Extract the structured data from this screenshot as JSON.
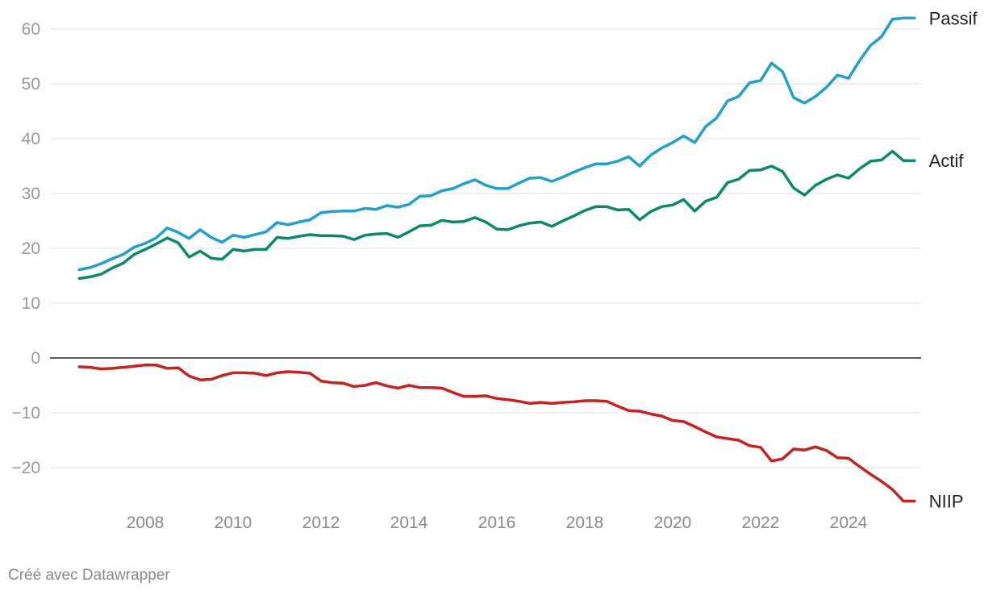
{
  "credit": "Créé avec Datawrapper",
  "chart_data": {
    "type": "line",
    "title": "",
    "xlabel": "",
    "ylabel": "",
    "xlim": [
      2006.3,
      2025.4
    ],
    "ylim": [
      -26,
      62
    ],
    "y_ticks": [
      60,
      50,
      40,
      30,
      20,
      10,
      0,
      -10,
      -20
    ],
    "y_tick_labels": [
      "60",
      "50",
      "40",
      "30",
      "20",
      "10",
      "0",
      "−10",
      "−20"
    ],
    "x_ticks": [
      2008,
      2010,
      2012,
      2014,
      2016,
      2018,
      2020,
      2022,
      2024
    ],
    "x_tick_labels": [
      "2008",
      "2010",
      "2012",
      "2014",
      "2016",
      "2018",
      "2020",
      "2022",
      "2024"
    ],
    "grid": true,
    "legend": "direct labels at line ends",
    "series": [
      {
        "name": "Passif",
        "color": "#1fa0cf",
        "points": [
          [
            2006.5,
            16.1
          ],
          [
            2006.75,
            16.5
          ],
          [
            2007.0,
            17.2
          ],
          [
            2007.25,
            18.1
          ],
          [
            2007.5,
            18.9
          ],
          [
            2007.75,
            20.2
          ],
          [
            2008.0,
            20.9
          ],
          [
            2008.25,
            21.9
          ],
          [
            2008.5,
            23.7
          ],
          [
            2008.75,
            22.9
          ],
          [
            2009.0,
            21.8
          ],
          [
            2009.25,
            23.4
          ],
          [
            2009.5,
            22.0
          ],
          [
            2009.75,
            21.1
          ],
          [
            2010.0,
            22.4
          ],
          [
            2010.25,
            22.0
          ],
          [
            2010.5,
            22.5
          ],
          [
            2010.75,
            23.0
          ],
          [
            2011.0,
            24.7
          ],
          [
            2011.25,
            24.3
          ],
          [
            2011.5,
            24.8
          ],
          [
            2011.75,
            25.2
          ],
          [
            2012.0,
            26.5
          ],
          [
            2012.25,
            26.7
          ],
          [
            2012.5,
            26.8
          ],
          [
            2012.75,
            26.8
          ],
          [
            2013.0,
            27.3
          ],
          [
            2013.25,
            27.1
          ],
          [
            2013.5,
            27.8
          ],
          [
            2013.75,
            27.5
          ],
          [
            2014.0,
            28.0
          ],
          [
            2014.25,
            29.5
          ],
          [
            2014.5,
            29.6
          ],
          [
            2014.75,
            30.5
          ],
          [
            2015.0,
            30.9
          ],
          [
            2015.25,
            31.8
          ],
          [
            2015.5,
            32.5
          ],
          [
            2015.75,
            31.5
          ],
          [
            2016.0,
            30.9
          ],
          [
            2016.25,
            30.9
          ],
          [
            2016.5,
            31.9
          ],
          [
            2016.75,
            32.8
          ],
          [
            2017.0,
            32.9
          ],
          [
            2017.25,
            32.2
          ],
          [
            2017.5,
            33.0
          ],
          [
            2017.75,
            33.9
          ],
          [
            2018.0,
            34.7
          ],
          [
            2018.25,
            35.4
          ],
          [
            2018.5,
            35.4
          ],
          [
            2018.75,
            35.9
          ],
          [
            2019.0,
            36.7
          ],
          [
            2019.25,
            35.0
          ],
          [
            2019.5,
            37.0
          ],
          [
            2019.75,
            38.3
          ],
          [
            2020.0,
            39.3
          ],
          [
            2020.25,
            40.5
          ],
          [
            2020.5,
            39.3
          ],
          [
            2020.75,
            42.2
          ],
          [
            2021.0,
            43.8
          ],
          [
            2021.25,
            46.9
          ],
          [
            2021.5,
            47.7
          ],
          [
            2021.75,
            50.2
          ],
          [
            2022.0,
            50.6
          ],
          [
            2022.25,
            53.8
          ],
          [
            2022.5,
            52.2
          ],
          [
            2022.75,
            47.5
          ],
          [
            2023.0,
            46.5
          ],
          [
            2023.25,
            47.7
          ],
          [
            2023.5,
            49.4
          ],
          [
            2023.75,
            51.6
          ],
          [
            2024.0,
            51.0
          ],
          [
            2024.25,
            54.2
          ],
          [
            2024.5,
            57.0
          ],
          [
            2024.75,
            58.6
          ],
          [
            2025.0,
            61.8
          ],
          [
            2025.25,
            62.0
          ],
          [
            2025.5,
            62.0
          ]
        ]
      },
      {
        "name": "Actif",
        "color": "#0a8a6a",
        "points": [
          [
            2006.5,
            14.5
          ],
          [
            2006.75,
            14.8
          ],
          [
            2007.0,
            15.3
          ],
          [
            2007.25,
            16.4
          ],
          [
            2007.5,
            17.3
          ],
          [
            2007.75,
            18.9
          ],
          [
            2008.0,
            19.8
          ],
          [
            2008.25,
            20.8
          ],
          [
            2008.5,
            21.9
          ],
          [
            2008.75,
            21.0
          ],
          [
            2009.0,
            18.4
          ],
          [
            2009.25,
            19.5
          ],
          [
            2009.5,
            18.2
          ],
          [
            2009.75,
            18.0
          ],
          [
            2010.0,
            19.8
          ],
          [
            2010.25,
            19.5
          ],
          [
            2010.5,
            19.8
          ],
          [
            2010.75,
            19.8
          ],
          [
            2011.0,
            22.0
          ],
          [
            2011.25,
            21.8
          ],
          [
            2011.5,
            22.2
          ],
          [
            2011.75,
            22.5
          ],
          [
            2012.0,
            22.3
          ],
          [
            2012.25,
            22.3
          ],
          [
            2012.5,
            22.2
          ],
          [
            2012.75,
            21.6
          ],
          [
            2013.0,
            22.4
          ],
          [
            2013.25,
            22.6
          ],
          [
            2013.5,
            22.7
          ],
          [
            2013.75,
            22.0
          ],
          [
            2014.0,
            23.0
          ],
          [
            2014.25,
            24.1
          ],
          [
            2014.5,
            24.2
          ],
          [
            2014.75,
            25.1
          ],
          [
            2015.0,
            24.8
          ],
          [
            2015.25,
            24.9
          ],
          [
            2015.5,
            25.6
          ],
          [
            2015.75,
            24.8
          ],
          [
            2016.0,
            23.5
          ],
          [
            2016.25,
            23.4
          ],
          [
            2016.5,
            24.1
          ],
          [
            2016.75,
            24.6
          ],
          [
            2017.0,
            24.8
          ],
          [
            2017.25,
            24.0
          ],
          [
            2017.5,
            25.0
          ],
          [
            2017.75,
            25.9
          ],
          [
            2018.0,
            26.9
          ],
          [
            2018.25,
            27.6
          ],
          [
            2018.5,
            27.6
          ],
          [
            2018.75,
            27.0
          ],
          [
            2019.0,
            27.1
          ],
          [
            2019.25,
            25.2
          ],
          [
            2019.5,
            26.7
          ],
          [
            2019.75,
            27.6
          ],
          [
            2020.0,
            27.9
          ],
          [
            2020.25,
            28.9
          ],
          [
            2020.5,
            26.8
          ],
          [
            2020.75,
            28.6
          ],
          [
            2021.0,
            29.3
          ],
          [
            2021.25,
            32.0
          ],
          [
            2021.5,
            32.6
          ],
          [
            2021.75,
            34.2
          ],
          [
            2022.0,
            34.3
          ],
          [
            2022.25,
            35.0
          ],
          [
            2022.5,
            34.0
          ],
          [
            2022.75,
            31.0
          ],
          [
            2023.0,
            29.7
          ],
          [
            2023.25,
            31.5
          ],
          [
            2023.5,
            32.6
          ],
          [
            2023.75,
            33.4
          ],
          [
            2024.0,
            32.8
          ],
          [
            2024.25,
            34.5
          ],
          [
            2024.5,
            35.9
          ],
          [
            2024.75,
            36.1
          ],
          [
            2025.0,
            37.7
          ],
          [
            2025.25,
            36.0
          ],
          [
            2025.5,
            36.0
          ]
        ]
      },
      {
        "name": "NIIP",
        "color": "#c8211f",
        "points": [
          [
            2006.5,
            -1.6
          ],
          [
            2006.75,
            -1.7
          ],
          [
            2007.0,
            -2.0
          ],
          [
            2007.25,
            -1.9
          ],
          [
            2007.5,
            -1.7
          ],
          [
            2007.75,
            -1.5
          ],
          [
            2008.0,
            -1.3
          ],
          [
            2008.25,
            -1.3
          ],
          [
            2008.5,
            -1.9
          ],
          [
            2008.75,
            -1.8
          ],
          [
            2009.0,
            -3.3
          ],
          [
            2009.25,
            -4.0
          ],
          [
            2009.5,
            -3.9
          ],
          [
            2009.75,
            -3.2
          ],
          [
            2010.0,
            -2.7
          ],
          [
            2010.25,
            -2.7
          ],
          [
            2010.5,
            -2.8
          ],
          [
            2010.75,
            -3.2
          ],
          [
            2011.0,
            -2.7
          ],
          [
            2011.25,
            -2.5
          ],
          [
            2011.5,
            -2.6
          ],
          [
            2011.75,
            -2.8
          ],
          [
            2012.0,
            -4.2
          ],
          [
            2012.25,
            -4.5
          ],
          [
            2012.5,
            -4.6
          ],
          [
            2012.75,
            -5.2
          ],
          [
            2013.0,
            -5.0
          ],
          [
            2013.25,
            -4.5
          ],
          [
            2013.5,
            -5.1
          ],
          [
            2013.75,
            -5.5
          ],
          [
            2014.0,
            -5.0
          ],
          [
            2014.25,
            -5.4
          ],
          [
            2014.5,
            -5.4
          ],
          [
            2014.75,
            -5.5
          ],
          [
            2015.0,
            -6.3
          ],
          [
            2015.25,
            -7.0
          ],
          [
            2015.5,
            -7.0
          ],
          [
            2015.75,
            -6.9
          ],
          [
            2016.0,
            -7.4
          ],
          [
            2016.25,
            -7.6
          ],
          [
            2016.5,
            -7.9
          ],
          [
            2016.75,
            -8.3
          ],
          [
            2017.0,
            -8.1
          ],
          [
            2017.25,
            -8.3
          ],
          [
            2017.5,
            -8.1
          ],
          [
            2017.75,
            -8.0
          ],
          [
            2018.0,
            -7.8
          ],
          [
            2018.25,
            -7.8
          ],
          [
            2018.5,
            -7.9
          ],
          [
            2018.75,
            -8.8
          ],
          [
            2019.0,
            -9.6
          ],
          [
            2019.25,
            -9.7
          ],
          [
            2019.5,
            -10.2
          ],
          [
            2019.75,
            -10.6
          ],
          [
            2020.0,
            -11.4
          ],
          [
            2020.25,
            -11.6
          ],
          [
            2020.5,
            -12.5
          ],
          [
            2020.75,
            -13.5
          ],
          [
            2021.0,
            -14.4
          ],
          [
            2021.25,
            -14.7
          ],
          [
            2021.5,
            -15.0
          ],
          [
            2021.75,
            -16.0
          ],
          [
            2022.0,
            -16.3
          ],
          [
            2022.25,
            -18.8
          ],
          [
            2022.5,
            -18.4
          ],
          [
            2022.75,
            -16.6
          ],
          [
            2023.0,
            -16.8
          ],
          [
            2023.25,
            -16.2
          ],
          [
            2023.5,
            -16.9
          ],
          [
            2023.75,
            -18.2
          ],
          [
            2024.0,
            -18.3
          ],
          [
            2024.25,
            -19.8
          ],
          [
            2024.5,
            -21.2
          ],
          [
            2024.75,
            -22.5
          ],
          [
            2025.0,
            -24.0
          ],
          [
            2025.25,
            -26.1
          ],
          [
            2025.5,
            -26.1
          ]
        ]
      }
    ]
  }
}
